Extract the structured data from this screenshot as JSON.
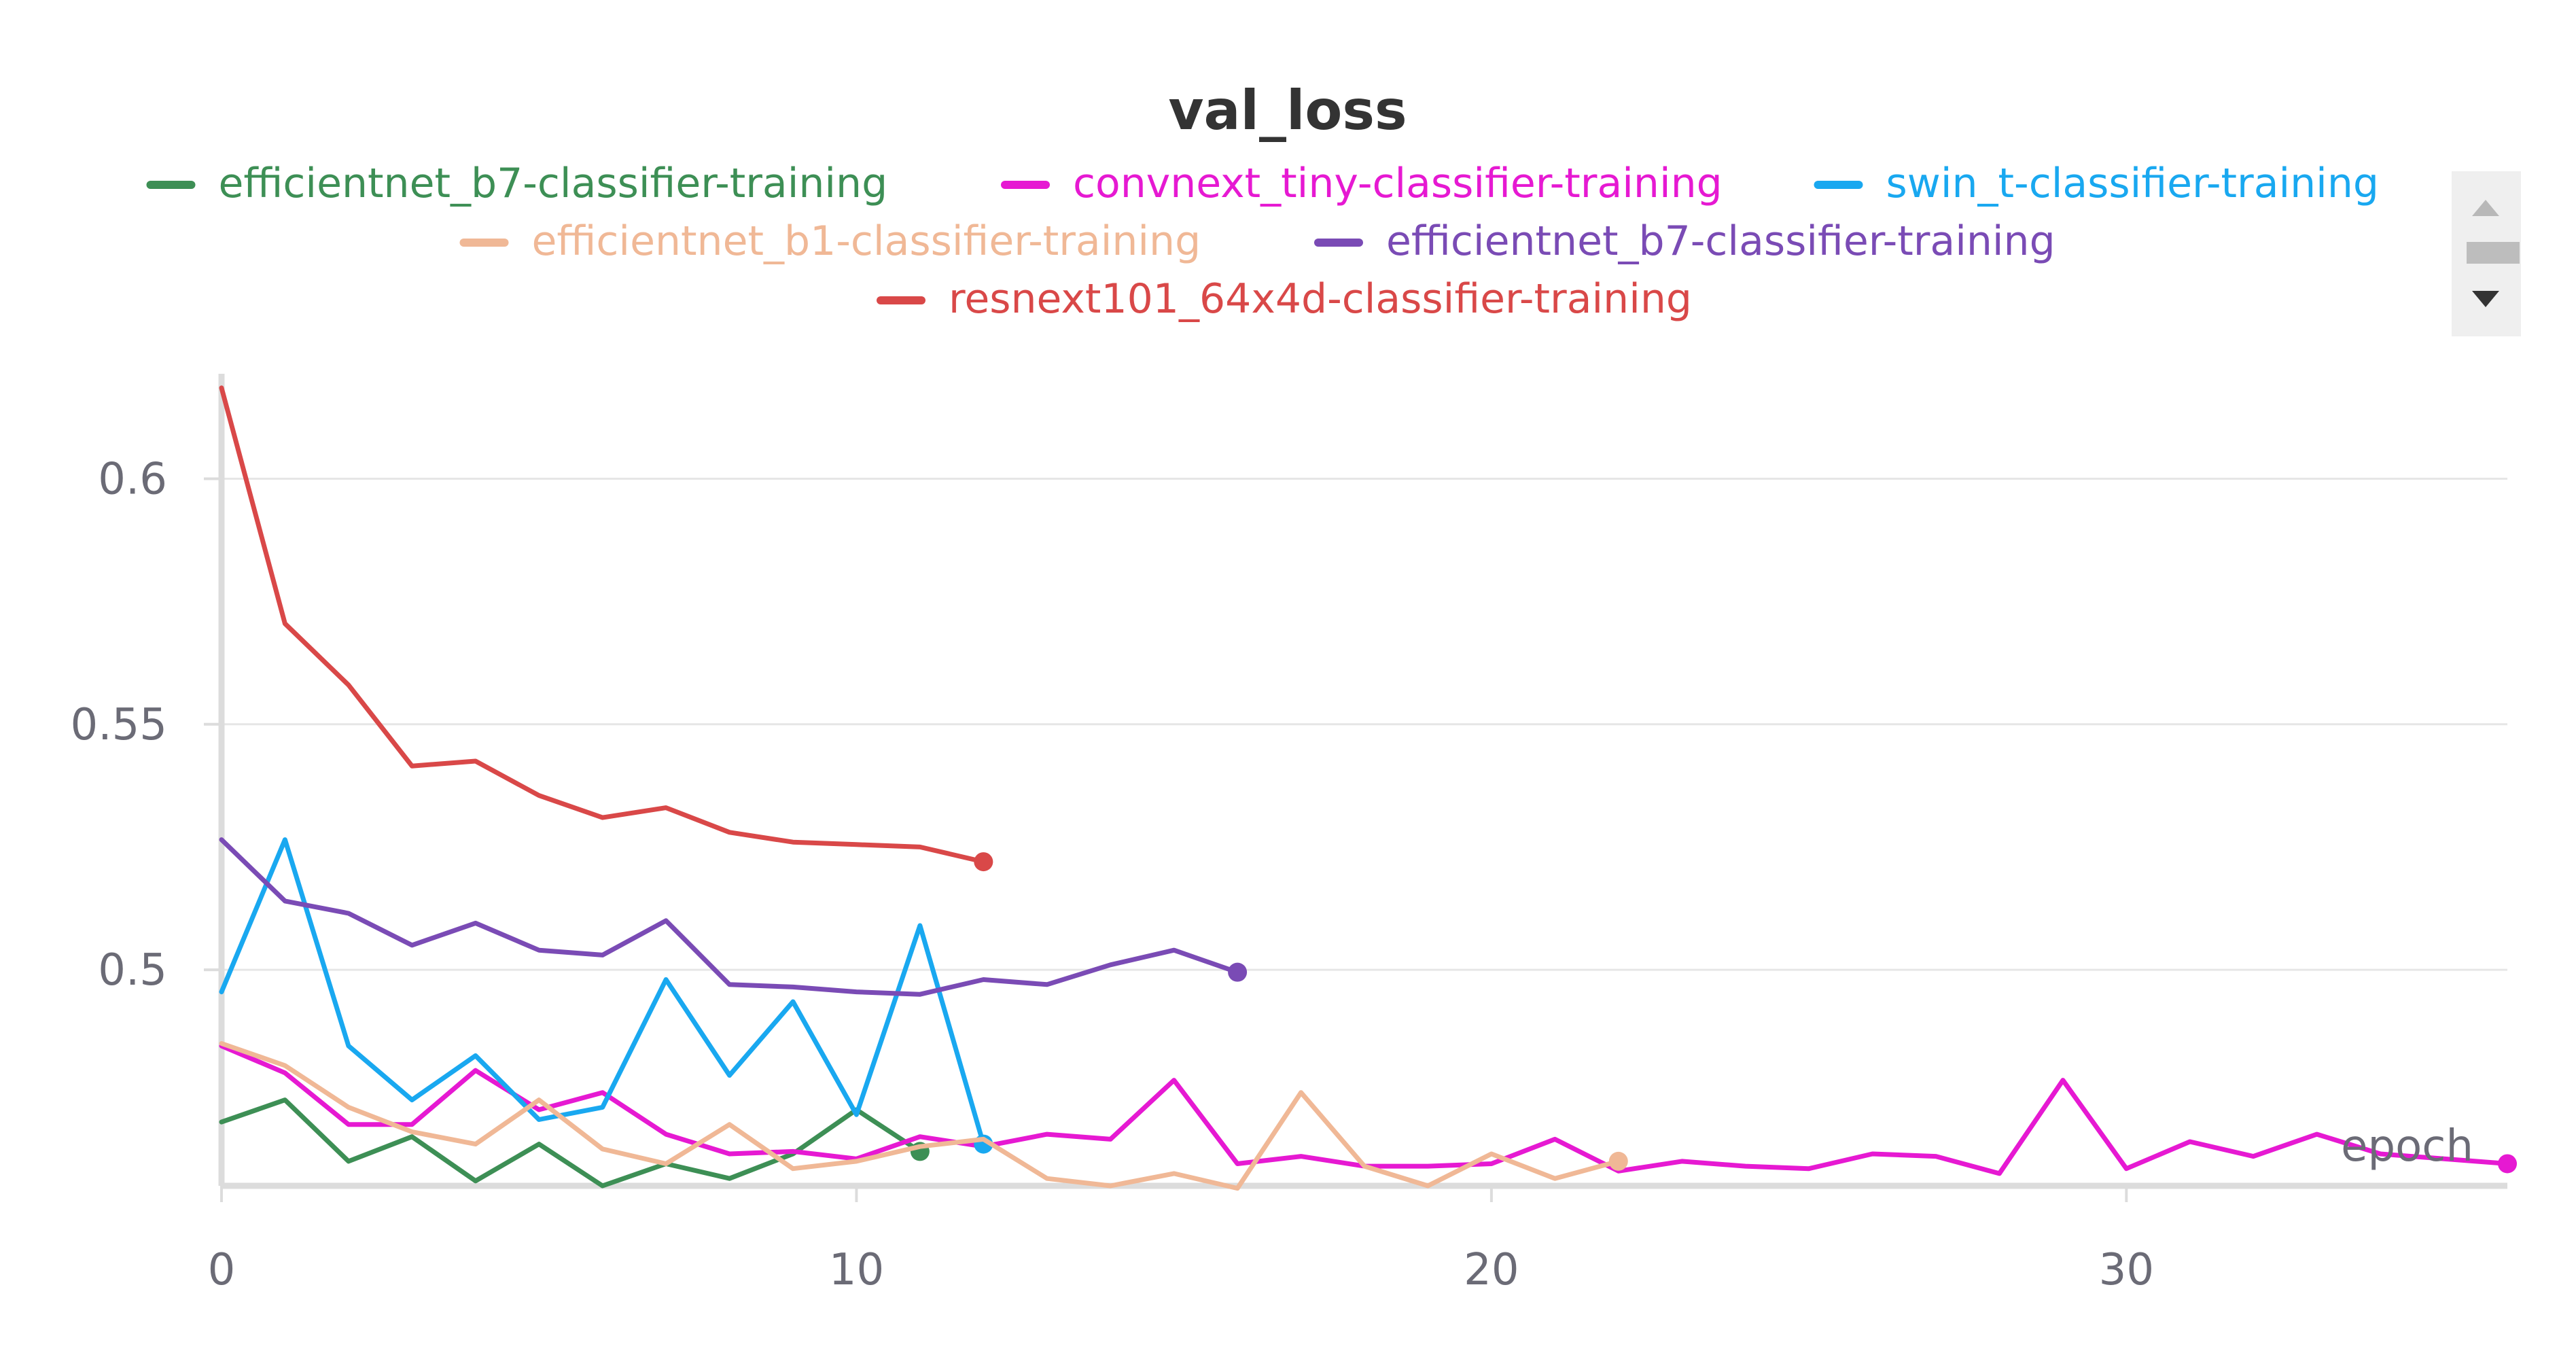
{
  "chart_data": {
    "type": "line",
    "title": "val_loss",
    "xlabel": "epoch",
    "ylabel": "",
    "xlim": [
      0,
      36
    ],
    "ylim": [
      0.456,
      0.62
    ],
    "xticks": [
      "0",
      "10",
      "20",
      "30"
    ],
    "yticks": [
      "0.5",
      "0.55",
      "0.6"
    ],
    "grid": "horizontal",
    "legend_position": "top-center",
    "series": [
      {
        "name": "efficientnet_b7-classifier-training",
        "color": "#3d8f55",
        "x": [
          0,
          1,
          2,
          3,
          4,
          5,
          6,
          7,
          8,
          9,
          10,
          11
        ],
        "y": [
          0.469,
          0.4735,
          0.461,
          0.466,
          0.457,
          0.4645,
          0.456,
          0.4605,
          0.4575,
          0.4625,
          0.4715,
          0.463
        ]
      },
      {
        "name": "convnext_tiny-classifier-training",
        "color": "#e619d2",
        "x": [
          0,
          1,
          2,
          3,
          4,
          5,
          6,
          7,
          8,
          9,
          10,
          11,
          12,
          13,
          14,
          15,
          16,
          17,
          18,
          19,
          20,
          21,
          22,
          23,
          24,
          25,
          26,
          27,
          28,
          29,
          30,
          31,
          32,
          33,
          34,
          35,
          36
        ],
        "y": [
          0.4845,
          0.479,
          0.4685,
          0.4685,
          0.4795,
          0.4715,
          0.475,
          0.4665,
          0.4625,
          0.463,
          0.4615,
          0.466,
          0.464,
          0.4665,
          0.4655,
          0.4775,
          0.4605,
          0.462,
          0.46,
          0.46,
          0.4605,
          0.4655,
          0.459,
          0.461,
          0.46,
          0.4595,
          0.4625,
          0.462,
          0.4585,
          0.4775,
          0.4595,
          0.465,
          0.462,
          0.4665,
          0.4625,
          0.4615,
          0.4605
        ]
      },
      {
        "name": "swin_t-classifier-training",
        "color": "#19a8f0",
        "x": [
          0,
          1,
          2,
          3,
          4,
          5,
          6,
          7,
          8,
          9,
          10,
          11,
          12
        ],
        "y": [
          0.4955,
          0.5265,
          0.4845,
          0.4735,
          0.4825,
          0.4695,
          0.472,
          0.498,
          0.4785,
          0.4935,
          0.4705,
          0.509,
          0.4645
        ]
      },
      {
        "name": "efficientnet_b1-classifier-training",
        "color": "#f0b896",
        "x": [
          0,
          1,
          2,
          3,
          4,
          5,
          6,
          7,
          8,
          9,
          10,
          11,
          12,
          13,
          14,
          15,
          16,
          17,
          18,
          19,
          20,
          21,
          22
        ],
        "y": [
          0.485,
          0.4805,
          0.472,
          0.467,
          0.4645,
          0.4735,
          0.4635,
          0.4605,
          0.4685,
          0.4595,
          0.461,
          0.464,
          0.4655,
          0.4575,
          0.456,
          0.4585,
          0.4555,
          0.475,
          0.46,
          0.456,
          0.4625,
          0.4575,
          0.461
        ]
      },
      {
        "name": "efficientnet_b7-classifier-training",
        "color": "#7a4bb5",
        "x": [
          0,
          1,
          2,
          3,
          4,
          5,
          6,
          7,
          8,
          9,
          10,
          11,
          12,
          13,
          14,
          15,
          16
        ],
        "y": [
          0.5265,
          0.514,
          0.5115,
          0.505,
          0.5095,
          0.504,
          0.503,
          0.51,
          0.497,
          0.4965,
          0.4955,
          0.495,
          0.498,
          0.497,
          0.501,
          0.504,
          0.4995
        ]
      },
      {
        "name": "resnext101_64x4d-classifier-training",
        "color": "#d94848",
        "x": [
          0,
          1,
          2,
          3,
          4,
          5,
          6,
          7,
          8,
          9,
          10,
          11,
          12
        ],
        "y": [
          0.6185,
          0.5705,
          0.558,
          0.5415,
          0.5425,
          0.5355,
          0.531,
          0.533,
          0.528,
          0.526,
          0.5255,
          0.525,
          0.522
        ]
      }
    ]
  },
  "legend": {
    "scroll_up_icon": "caret-up-icon",
    "scroll_down_icon": "caret-down-icon"
  }
}
